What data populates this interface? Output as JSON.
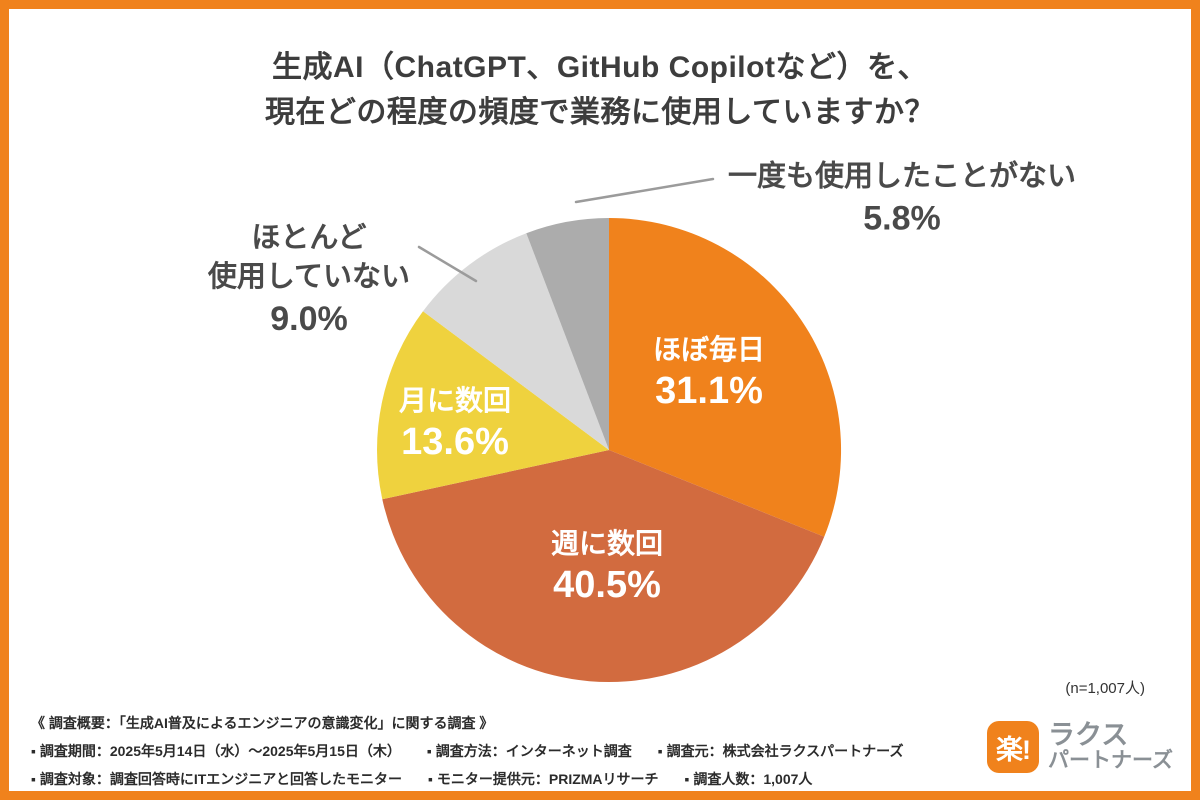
{
  "title": {
    "line1": "生成AI（ChatGPT、GitHub Copilotなど）を、",
    "line2": "現在どの程度の頻度で業務に使用していますか？"
  },
  "chart_data": {
    "type": "pie",
    "title": "生成AI（ChatGPT、GitHub Copilotなど）を、現在どの程度の頻度で業務に使用していますか？",
    "start_angle_deg": 0,
    "direction": "clockwise",
    "sample_note": "(n=1,007人)",
    "segments": [
      {
        "label": "ほぼ毎日",
        "value": 31.1,
        "pct_label": "31.1%",
        "color": "#F0821C",
        "label_placement": "inside"
      },
      {
        "label": "週に数回",
        "value": 40.5,
        "pct_label": "40.5%",
        "color": "#D26B3F",
        "label_placement": "inside"
      },
      {
        "label": "月に数回",
        "value": 13.6,
        "pct_label": "13.6%",
        "color": "#EFD23E",
        "label_placement": "inside"
      },
      {
        "label": "ほとんど使用していない",
        "value": 9.0,
        "pct_label": "9.0%",
        "color": "#D9D9D9",
        "label_placement": "outside-left",
        "label_lines": [
          "ほとんど",
          "使用していない"
        ]
      },
      {
        "label": "一度も使用したことがない",
        "value": 5.8,
        "pct_label": "5.8%",
        "color": "#ACACAC",
        "label_placement": "outside-right"
      }
    ]
  },
  "footer": {
    "overview": "《 調査概要：「生成AI普及によるエンジニアの意識変化」に関する調査 》",
    "line2_items": [
      "▪ 調査期間：2025年5月14日（水）～2025年5月15日（木）",
      "▪ 調査方法：インターネット調査",
      "▪ 調査元：株式会社ラクスパートナーズ"
    ],
    "line3_items": [
      "▪ 調査対象：調査回答時にITエンジニアと回答したモニター",
      "▪ モニター提供元：PRIZMAリサーチ",
      "▪ 調査人数：1,007人"
    ]
  },
  "logo": {
    "mark": "楽!",
    "name_line1": "ラクス",
    "name_line2": "パートナーズ"
  },
  "colors": {
    "frame": "#F0821C",
    "title_text": "#3D3D3D",
    "callout_text": "#4A4A4A",
    "leader_line": "#9B9B9B"
  }
}
